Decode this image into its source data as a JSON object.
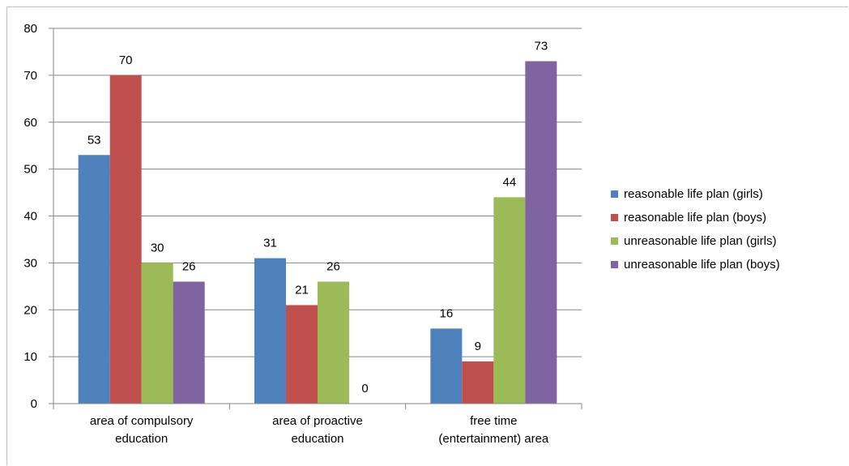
{
  "chart_data": {
    "type": "bar",
    "categories": [
      [
        "area of compulsory",
        "education"
      ],
      [
        "area of proactive",
        "education"
      ],
      [
        "free time",
        "(entertainment) area"
      ]
    ],
    "series": [
      {
        "name": "reasonable life plan (girls)",
        "color": "#4F81BD",
        "values": [
          53,
          31,
          16
        ]
      },
      {
        "name": "reasonable life plan (boys)",
        "color": "#C0504D",
        "values": [
          70,
          21,
          9
        ]
      },
      {
        "name": "unreasonable life plan (girls)",
        "color": "#9BBB59",
        "values": [
          30,
          26,
          44
        ]
      },
      {
        "name": "unreasonable life plan (boys)",
        "color": "#8064A2",
        "values": [
          26,
          0,
          73
        ]
      }
    ],
    "yticks": [
      0,
      10,
      20,
      30,
      40,
      50,
      60,
      70,
      80
    ],
    "ylim": [
      0,
      80
    ],
    "grid": true,
    "legend_position": "right"
  }
}
